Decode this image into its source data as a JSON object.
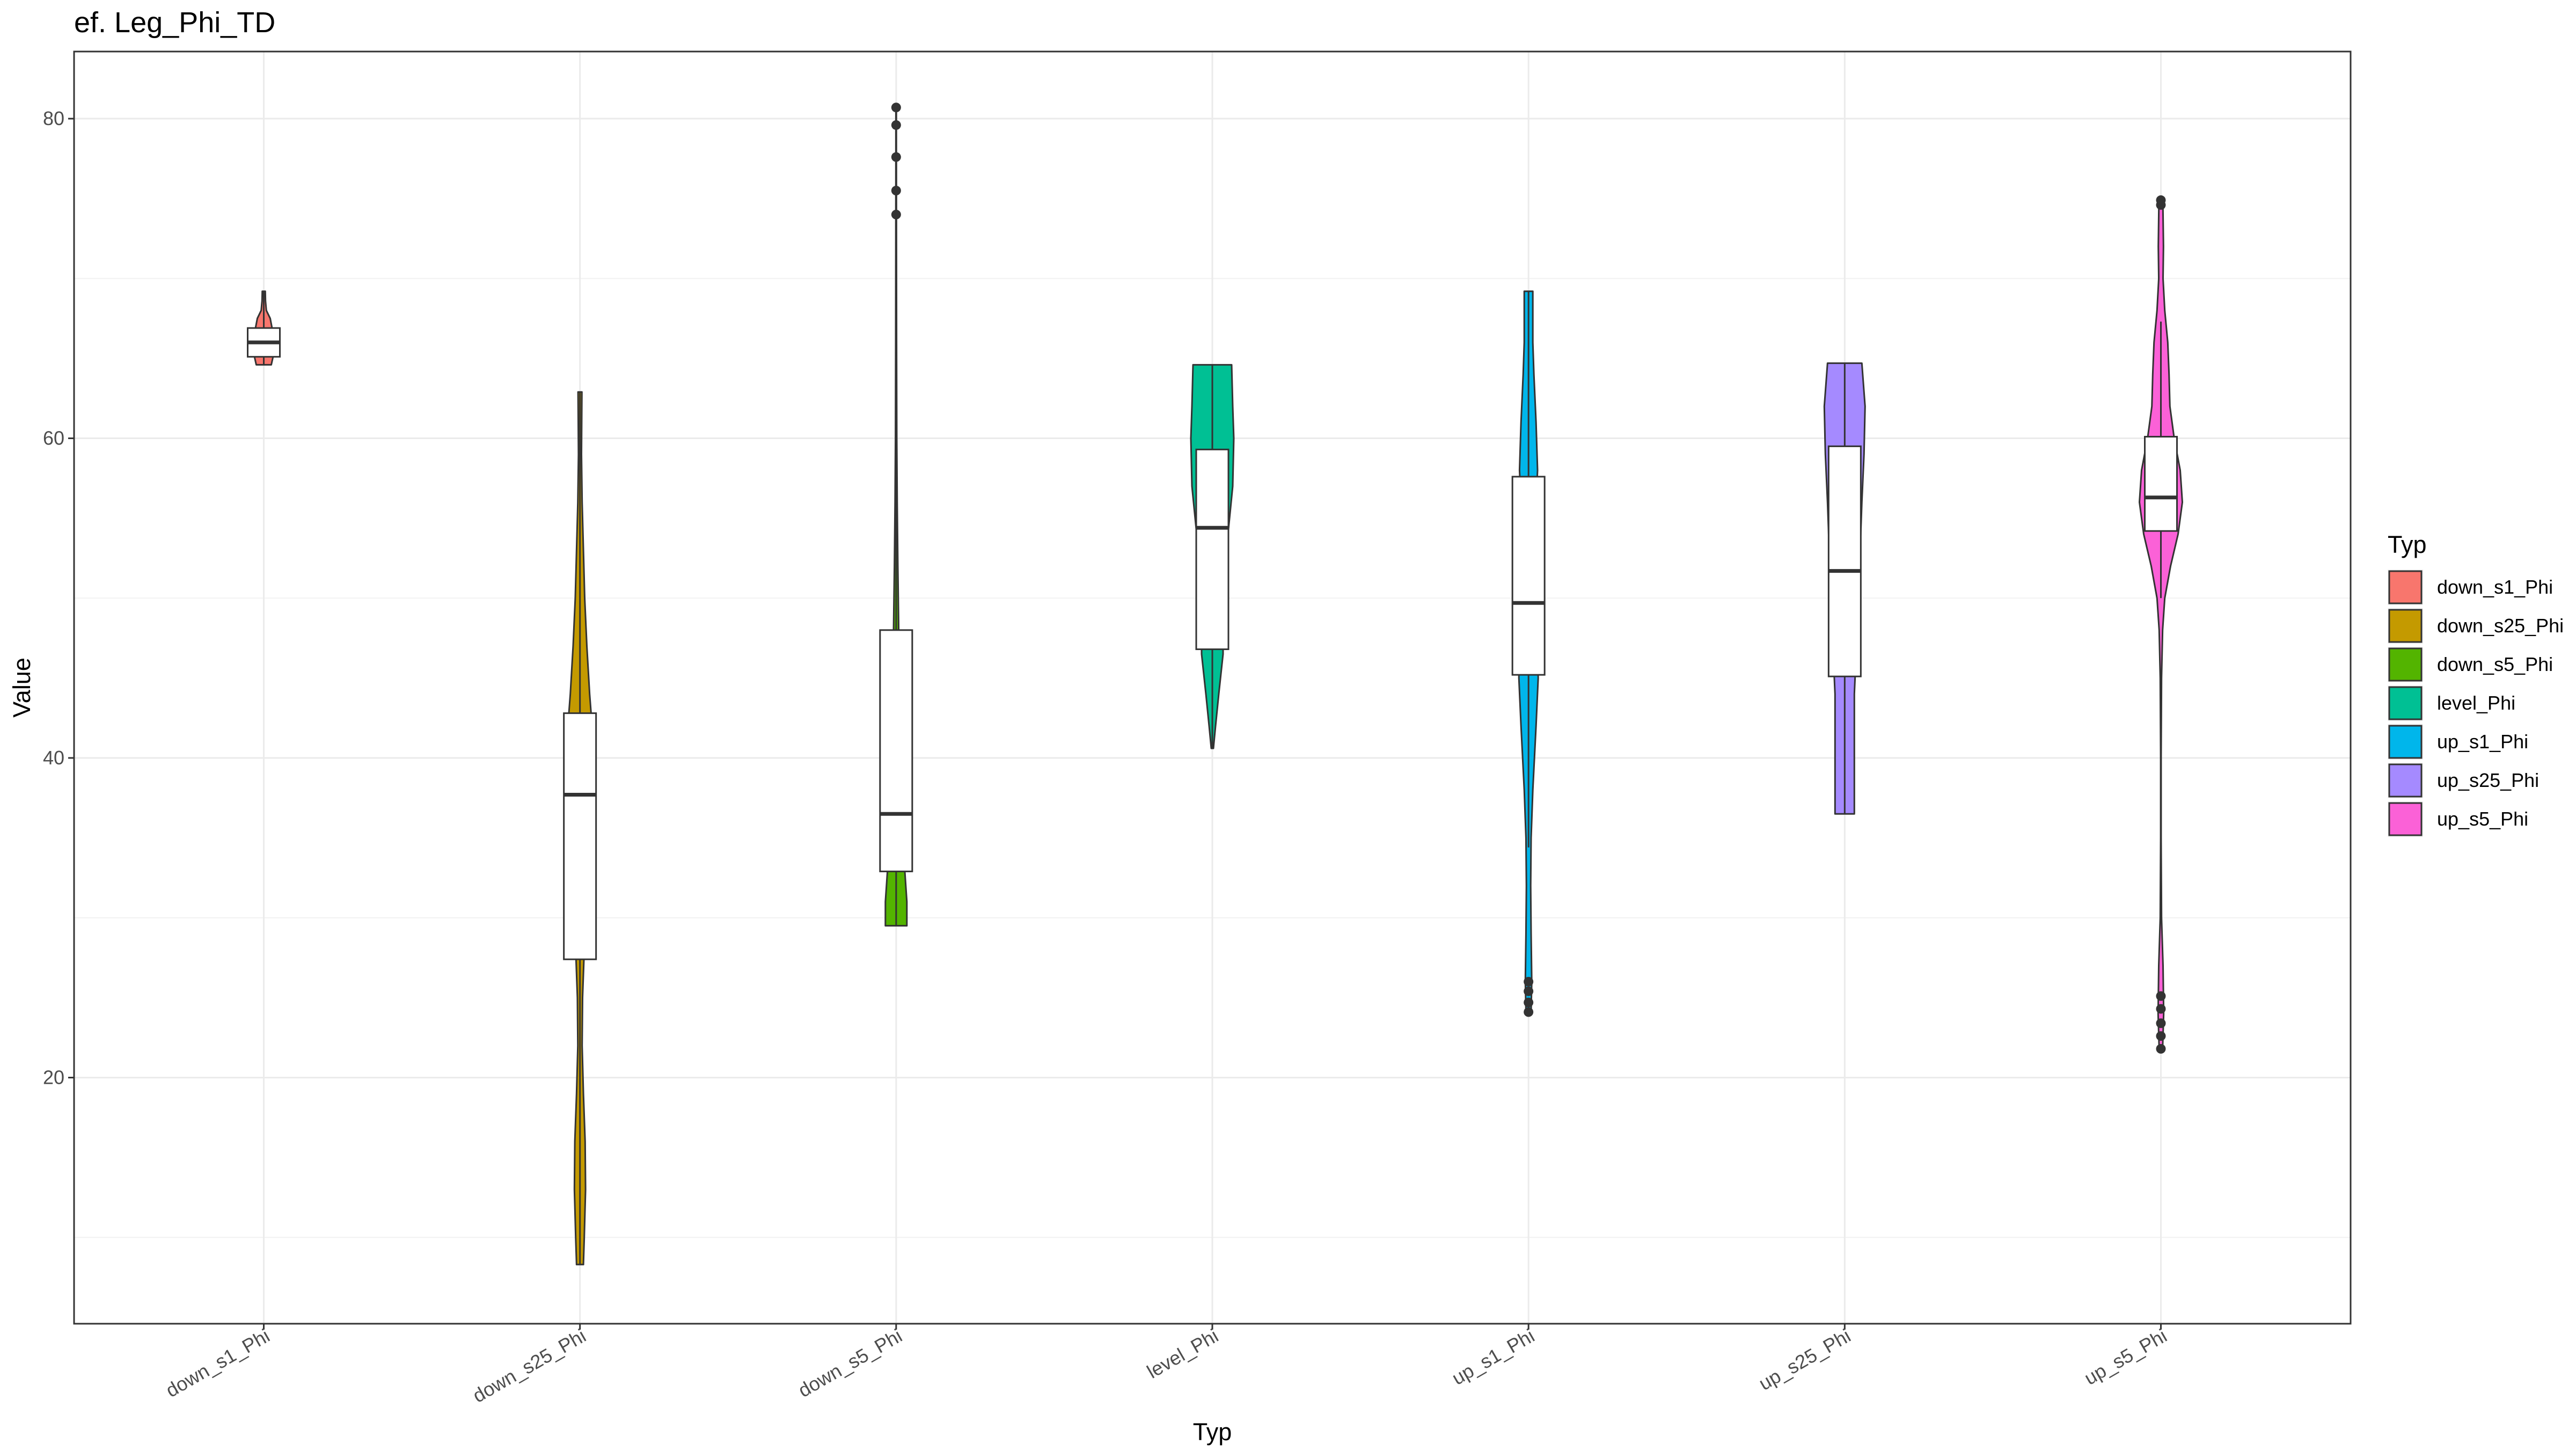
{
  "chart_data": {
    "type": "violin",
    "title": "ef. Leg_Phi_TD",
    "xlabel": "Typ",
    "ylabel": "Value",
    "ylim": [
      4.6,
      84.2
    ],
    "yticks": [
      20,
      40,
      60,
      80
    ],
    "y_minor_ticks": [
      10,
      30,
      50,
      70
    ],
    "grid": true,
    "legend": {
      "title": "Typ",
      "placement": "right"
    },
    "categories": [
      "down_s1_Phi",
      "down_s25_Phi",
      "down_s5_Phi",
      "level_Phi",
      "up_s1_Phi",
      "up_s25_Phi",
      "up_s5_Phi"
    ],
    "series": [
      {
        "name": "down_s1_Phi",
        "color": "#F8766D",
        "density": [
          [
            64.6,
            0.35
          ],
          [
            65.2,
            0.45
          ],
          [
            66.0,
            0.4
          ],
          [
            66.8,
            0.4
          ],
          [
            67.5,
            0.3
          ],
          [
            68.0,
            0.12
          ],
          [
            68.6,
            0.08
          ],
          [
            69.2,
            0.07
          ]
        ],
        "box": {
          "q1": 65.1,
          "median": 66.0,
          "q3": 66.9,
          "whisker_low": 64.6,
          "whisker_high": 69.2
        },
        "outliers": []
      },
      {
        "name": "down_s25_Phi",
        "color": "#C49A00",
        "density": [
          [
            8.3,
            0.16
          ],
          [
            10,
            0.2
          ],
          [
            13,
            0.26
          ],
          [
            16,
            0.24
          ],
          [
            19,
            0.16
          ],
          [
            22,
            0.1
          ],
          [
            25,
            0.12
          ],
          [
            28,
            0.2
          ],
          [
            32,
            0.36
          ],
          [
            36,
            0.6
          ],
          [
            38,
            0.72
          ],
          [
            41,
            0.62
          ],
          [
            44,
            0.45
          ],
          [
            47,
            0.32
          ],
          [
            50,
            0.22
          ],
          [
            53,
            0.16
          ],
          [
            56,
            0.1
          ],
          [
            59,
            0.07
          ],
          [
            62.9,
            0.09
          ]
        ],
        "box": {
          "q1": 27.4,
          "median": 37.7,
          "q3": 42.8,
          "whisker_low": 8.3,
          "whisker_high": 62.9
        },
        "outliers": []
      },
      {
        "name": "down_s5_Phi",
        "color": "#53B400",
        "density": [
          [
            29.5,
            0.5
          ],
          [
            31,
            0.5
          ],
          [
            33,
            0.4
          ],
          [
            34,
            0.3
          ],
          [
            36,
            0.25
          ],
          [
            38,
            0.22
          ],
          [
            40,
            0.2
          ],
          [
            44,
            0.17
          ],
          [
            48,
            0.12
          ],
          [
            52,
            0.08
          ],
          [
            56,
            0.05
          ],
          [
            60,
            0.03
          ],
          [
            66,
            0.02
          ],
          [
            72,
            0.015
          ],
          [
            80.7,
            0.01
          ]
        ],
        "box": {
          "q1": 32.9,
          "median": 36.5,
          "q3": 48.0,
          "whisker_low": 29.5,
          "whisker_high": 70.0
        },
        "outliers": [
          74.0,
          75.5,
          77.6,
          79.6,
          80.7
        ]
      },
      {
        "name": "level_Phi",
        "color": "#00C094",
        "density": [
          [
            40.6,
            0.05
          ],
          [
            42,
            0.15
          ],
          [
            44,
            0.3
          ],
          [
            46.5,
            0.5
          ],
          [
            49,
            0.5
          ],
          [
            51.5,
            0.6
          ],
          [
            54.3,
            0.75
          ],
          [
            57,
            0.95
          ],
          [
            60,
            1.0
          ],
          [
            62,
            0.95
          ],
          [
            64.6,
            0.9
          ]
        ],
        "box": {
          "q1": 46.8,
          "median": 54.4,
          "q3": 59.3,
          "whisker_low": 40.6,
          "whisker_high": 64.6
        },
        "outliers": []
      },
      {
        "name": "up_s1_Phi",
        "color": "#00B6EB",
        "density": [
          [
            24.1,
            0.12
          ],
          [
            26,
            0.15
          ],
          [
            29,
            0.12
          ],
          [
            32,
            0.1
          ],
          [
            35,
            0.12
          ],
          [
            38,
            0.2
          ],
          [
            42,
            0.35
          ],
          [
            45,
            0.45
          ],
          [
            48,
            0.42
          ],
          [
            50,
            0.35
          ],
          [
            53,
            0.3
          ],
          [
            56,
            0.35
          ],
          [
            58,
            0.42
          ],
          [
            61,
            0.35
          ],
          [
            64,
            0.25
          ],
          [
            66,
            0.2
          ],
          [
            69.2,
            0.2
          ]
        ],
        "box": {
          "q1": 45.2,
          "median": 49.7,
          "q3": 57.6,
          "whisker_low": 34.4,
          "whisker_high": 69.2
        },
        "outliers": [
          24.1,
          24.7,
          25.4,
          26.0
        ]
      },
      {
        "name": "up_s25_Phi",
        "color": "#A58AFF",
        "density": [
          [
            36.5,
            0.45
          ],
          [
            40,
            0.45
          ],
          [
            44,
            0.45
          ],
          [
            47,
            0.55
          ],
          [
            50,
            0.7
          ],
          [
            53,
            0.72
          ],
          [
            56,
            0.8
          ],
          [
            59,
            0.9
          ],
          [
            62,
            0.95
          ],
          [
            64.7,
            0.8
          ]
        ],
        "box": {
          "q1": 45.1,
          "median": 51.7,
          "q3": 59.5,
          "whisker_low": 36.5,
          "whisker_high": 64.7
        },
        "outliers": []
      },
      {
        "name": "up_s5_Phi",
        "color": "#FB61D7",
        "density": [
          [
            21.8,
            0.08
          ],
          [
            24,
            0.13
          ],
          [
            27,
            0.1
          ],
          [
            30,
            0.03
          ],
          [
            35,
            0.01
          ],
          [
            40,
            0.01
          ],
          [
            45,
            0.03
          ],
          [
            48,
            0.08
          ],
          [
            50,
            0.18
          ],
          [
            52,
            0.45
          ],
          [
            54,
            0.8
          ],
          [
            56,
            1.0
          ],
          [
            58,
            0.9
          ],
          [
            60,
            0.62
          ],
          [
            62,
            0.42
          ],
          [
            64,
            0.38
          ],
          [
            66,
            0.32
          ],
          [
            68,
            0.18
          ],
          [
            70,
            0.1
          ],
          [
            72,
            0.12
          ],
          [
            74,
            0.1
          ],
          [
            74.9,
            0.09
          ]
        ],
        "box": {
          "q1": 54.2,
          "median": 56.3,
          "q3": 60.1,
          "whisker_low": 50.0,
          "whisker_high": 67.3
        },
        "outliers": [
          21.8,
          22.6,
          23.4,
          24.3,
          25.1,
          74.6,
          74.9
        ]
      }
    ]
  }
}
